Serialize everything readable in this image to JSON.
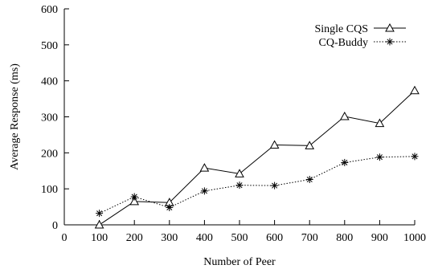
{
  "chart_data": {
    "type": "line",
    "title": "",
    "xlabel": "Number of Peer",
    "ylabel": "Average Response (ms)",
    "xlim": [
      0,
      1000
    ],
    "ylim": [
      0,
      600
    ],
    "xticks": [
      0,
      100,
      200,
      300,
      400,
      500,
      600,
      700,
      800,
      900,
      1000
    ],
    "yticks": [
      0,
      100,
      200,
      300,
      400,
      500,
      600
    ],
    "grid": false,
    "legend_position": "top-right",
    "x": [
      100,
      200,
      300,
      400,
      500,
      600,
      700,
      800,
      900,
      1000
    ],
    "series": [
      {
        "name": "Single CQS",
        "marker": "triangle",
        "line_style": "solid",
        "values": [
          0,
          65,
          62,
          158,
          142,
          222,
          220,
          301,
          282,
          373
        ]
      },
      {
        "name": "CQ-Buddy",
        "marker": "asterisk",
        "line_style": "dotted",
        "values": [
          32,
          78,
          48,
          94,
          110,
          109,
          126,
          173,
          188,
          190
        ]
      }
    ]
  }
}
